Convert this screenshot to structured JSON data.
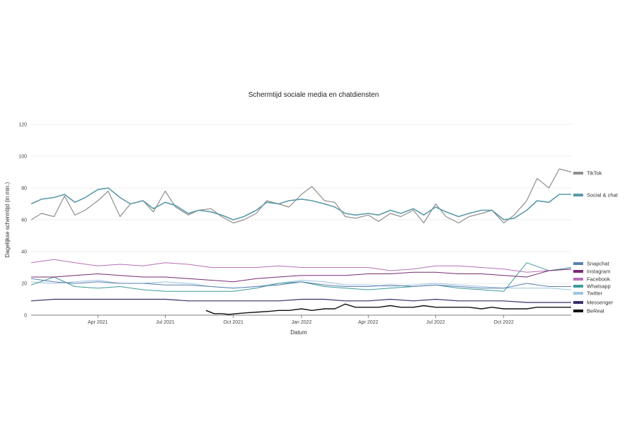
{
  "chart_data": {
    "type": "line",
    "title": "Schermtijd sociale media en chatdiensten",
    "xlabel": "Datum",
    "ylabel": "Dagelijkse schermtijd (in min.)",
    "x_range": [
      "2021-01-01",
      "2022-12-31"
    ],
    "ylim": [
      0,
      120
    ],
    "y_ticks": [
      0,
      20,
      40,
      60,
      80,
      100,
      120
    ],
    "x_ticks": [
      {
        "date": "2021-04-01",
        "label": "Apr 2021"
      },
      {
        "date": "2021-07-01",
        "label": "Jul 2021"
      },
      {
        "date": "2021-10-01",
        "label": "Oct 2021"
      },
      {
        "date": "2022-01-01",
        "label": "Jan 2022"
      },
      {
        "date": "2022-04-01",
        "label": "Apr 2022"
      },
      {
        "date": "2022-07-01",
        "label": "Jul 2022"
      },
      {
        "date": "2022-10-01",
        "label": "Oct 2022"
      }
    ],
    "grid": "horizontal",
    "legend": "right",
    "series": [
      {
        "name": "TikTok",
        "color": "#8e8e8e",
        "stroke": 1.2,
        "x": [
          "2021-01-01",
          "2021-01-15",
          "2021-02-01",
          "2021-02-15",
          "2021-03-01",
          "2021-03-15",
          "2021-04-01",
          "2021-04-15",
          "2021-05-01",
          "2021-05-15",
          "2021-06-01",
          "2021-06-15",
          "2021-07-01",
          "2021-07-15",
          "2021-08-01",
          "2021-08-15",
          "2021-09-01",
          "2021-09-15",
          "2021-10-01",
          "2021-10-15",
          "2021-11-01",
          "2021-11-15",
          "2021-12-01",
          "2021-12-15",
          "2022-01-01",
          "2022-01-15",
          "2022-02-01",
          "2022-02-15",
          "2022-03-01",
          "2022-03-15",
          "2022-04-01",
          "2022-04-15",
          "2022-05-01",
          "2022-05-15",
          "2022-06-01",
          "2022-06-15",
          "2022-07-01",
          "2022-07-15",
          "2022-08-01",
          "2022-08-15",
          "2022-09-01",
          "2022-09-15",
          "2022-10-01",
          "2022-10-15",
          "2022-11-01",
          "2022-11-15",
          "2022-12-01",
          "2022-12-15",
          "2022-12-31"
        ],
        "y": [
          60,
          64,
          62,
          75,
          63,
          66,
          72,
          78,
          62,
          70,
          72,
          65,
          78,
          68,
          63,
          66,
          67,
          62,
          58,
          60,
          64,
          72,
          70,
          68,
          76,
          81,
          72,
          71,
          62,
          61,
          63,
          59,
          64,
          62,
          66,
          58,
          70,
          62,
          58,
          62,
          64,
          66,
          58,
          63,
          72,
          86,
          80,
          92,
          90
        ]
      },
      {
        "name": "Social & chat",
        "color": "#5b9aa8",
        "stroke": 1.6,
        "x": [
          "2021-01-01",
          "2021-01-15",
          "2021-02-01",
          "2021-02-15",
          "2021-03-01",
          "2021-03-15",
          "2021-04-01",
          "2021-04-15",
          "2021-05-01",
          "2021-05-15",
          "2021-06-01",
          "2021-06-15",
          "2021-07-01",
          "2021-07-15",
          "2021-08-01",
          "2021-08-15",
          "2021-09-01",
          "2021-09-15",
          "2021-10-01",
          "2021-10-15",
          "2021-11-01",
          "2021-11-15",
          "2021-12-01",
          "2021-12-15",
          "2022-01-01",
          "2022-01-15",
          "2022-02-01",
          "2022-02-15",
          "2022-03-01",
          "2022-03-15",
          "2022-04-01",
          "2022-04-15",
          "2022-05-01",
          "2022-05-15",
          "2022-06-01",
          "2022-06-15",
          "2022-07-01",
          "2022-07-15",
          "2022-08-01",
          "2022-08-15",
          "2022-09-01",
          "2022-09-15",
          "2022-10-01",
          "2022-10-15",
          "2022-11-01",
          "2022-11-15",
          "2022-12-01",
          "2022-12-15",
          "2022-12-31"
        ],
        "y": [
          70,
          73,
          74,
          76,
          71,
          74,
          79,
          80,
          74,
          70,
          72,
          67,
          71,
          69,
          64,
          66,
          65,
          63,
          60,
          62,
          66,
          71,
          70,
          72,
          73,
          72,
          70,
          68,
          64,
          63,
          64,
          63,
          66,
          64,
          67,
          63,
          68,
          65,
          62,
          64,
          66,
          66,
          60,
          61,
          66,
          72,
          71,
          76,
          76
        ]
      },
      {
        "name": "Snapchat",
        "color": "#5b7fb0",
        "stroke": 1.0,
        "x": [
          "2021-01-01",
          "2021-02-01",
          "2021-03-01",
          "2021-04-01",
          "2021-05-01",
          "2021-06-01",
          "2021-07-01",
          "2021-08-01",
          "2021-09-01",
          "2021-10-01",
          "2021-11-01",
          "2021-12-01",
          "2022-01-01",
          "2022-02-01",
          "2022-03-01",
          "2022-04-01",
          "2022-05-01",
          "2022-06-01",
          "2022-07-01",
          "2022-08-01",
          "2022-09-01",
          "2022-10-01",
          "2022-11-01",
          "2022-12-01",
          "2022-12-31"
        ],
        "y": [
          23,
          21,
          20,
          21,
          20,
          20,
          19,
          19,
          18,
          17,
          18,
          19,
          21,
          19,
          18,
          18,
          19,
          18,
          19,
          18,
          17,
          17,
          20,
          18,
          18
        ]
      },
      {
        "name": "Instagram",
        "color": "#7a2a72",
        "stroke": 1.0,
        "x": [
          "2021-01-01",
          "2021-02-01",
          "2021-03-01",
          "2021-04-01",
          "2021-05-01",
          "2021-06-01",
          "2021-07-01",
          "2021-08-01",
          "2021-09-01",
          "2021-10-01",
          "2021-11-01",
          "2021-12-01",
          "2022-01-01",
          "2022-02-01",
          "2022-03-01",
          "2022-04-01",
          "2022-05-01",
          "2022-06-01",
          "2022-07-01",
          "2022-08-01",
          "2022-09-01",
          "2022-10-01",
          "2022-11-01",
          "2022-12-01",
          "2022-12-31"
        ],
        "y": [
          24,
          24,
          25,
          26,
          25,
          24,
          24,
          23,
          22,
          21,
          23,
          24,
          25,
          25,
          25,
          26,
          26,
          27,
          27,
          26,
          26,
          25,
          24,
          28,
          29
        ]
      },
      {
        "name": "Facebook",
        "color": "#b770b5",
        "stroke": 1.0,
        "x": [
          "2021-01-01",
          "2021-02-01",
          "2021-03-01",
          "2021-04-01",
          "2021-05-01",
          "2021-06-01",
          "2021-07-01",
          "2021-08-01",
          "2021-09-01",
          "2021-10-01",
          "2021-11-01",
          "2021-12-01",
          "2022-01-01",
          "2022-02-01",
          "2022-03-01",
          "2022-04-01",
          "2022-05-01",
          "2022-06-01",
          "2022-07-01",
          "2022-08-01",
          "2022-09-01",
          "2022-10-01",
          "2022-11-01",
          "2022-12-01",
          "2022-12-31"
        ],
        "y": [
          33,
          35,
          33,
          31,
          32,
          31,
          33,
          32,
          30,
          30,
          30,
          31,
          30,
          30,
          30,
          30,
          28,
          29,
          31,
          31,
          30,
          29,
          27,
          28,
          29
        ]
      },
      {
        "name": "Whatsapp",
        "color": "#3e9a9a",
        "stroke": 1.0,
        "x": [
          "2021-01-01",
          "2021-02-01",
          "2021-03-01",
          "2021-04-01",
          "2021-05-01",
          "2021-06-01",
          "2021-07-01",
          "2021-08-01",
          "2021-09-01",
          "2021-10-01",
          "2021-11-01",
          "2021-12-01",
          "2022-01-01",
          "2022-02-01",
          "2022-03-01",
          "2022-04-01",
          "2022-05-01",
          "2022-06-01",
          "2022-07-01",
          "2022-08-01",
          "2022-09-01",
          "2022-10-01",
          "2022-11-01",
          "2022-12-01",
          "2022-12-31"
        ],
        "y": [
          19,
          24,
          18,
          17,
          18,
          16,
          15,
          15,
          15,
          15,
          17,
          20,
          21,
          18,
          17,
          16,
          17,
          18,
          19,
          17,
          16,
          15,
          33,
          28,
          30
        ]
      },
      {
        "name": "Twitter",
        "color": "#9cc4df",
        "stroke": 1.0,
        "x": [
          "2021-01-01",
          "2021-02-01",
          "2021-03-01",
          "2021-04-01",
          "2021-05-01",
          "2021-06-01",
          "2021-07-01",
          "2021-08-01",
          "2021-09-01",
          "2021-10-01",
          "2021-11-01",
          "2021-12-01",
          "2022-01-01",
          "2022-02-01",
          "2022-03-01",
          "2022-04-01",
          "2022-05-01",
          "2022-06-01",
          "2022-07-01",
          "2022-08-01",
          "2022-09-01",
          "2022-10-01",
          "2022-11-01",
          "2022-12-01",
          "2022-12-31"
        ],
        "y": [
          21,
          20,
          21,
          22,
          20,
          20,
          21,
          20,
          18,
          17,
          18,
          20,
          22,
          21,
          19,
          19,
          18,
          19,
          20,
          19,
          18,
          17,
          17,
          17,
          16
        ]
      },
      {
        "name": "Messenger",
        "color": "#3a2f6b",
        "stroke": 1.2,
        "x": [
          "2021-01-01",
          "2021-02-01",
          "2021-03-01",
          "2021-04-01",
          "2021-05-01",
          "2021-06-01",
          "2021-07-01",
          "2021-08-01",
          "2021-09-01",
          "2021-10-01",
          "2021-11-01",
          "2021-12-01",
          "2022-01-01",
          "2022-02-01",
          "2022-03-01",
          "2022-04-01",
          "2022-05-01",
          "2022-06-01",
          "2022-07-01",
          "2022-08-01",
          "2022-09-01",
          "2022-10-01",
          "2022-11-01",
          "2022-12-01",
          "2022-12-31"
        ],
        "y": [
          9,
          10,
          10,
          10,
          10,
          10,
          10,
          9,
          9,
          9,
          9,
          9,
          10,
          10,
          9,
          9,
          10,
          9,
          10,
          9,
          9,
          9,
          8,
          8,
          8
        ]
      },
      {
        "name": "BeReal",
        "color": "#111111",
        "stroke": 1.4,
        "x": [
          "2021-08-25",
          "2021-09-05",
          "2021-09-15",
          "2021-09-25",
          "2021-10-05",
          "2021-10-20",
          "2021-11-05",
          "2021-11-20",
          "2021-12-01",
          "2021-12-15",
          "2022-01-01",
          "2022-01-15",
          "2022-02-01",
          "2022-02-15",
          "2022-03-01",
          "2022-03-15",
          "2022-04-01",
          "2022-04-15",
          "2022-05-01",
          "2022-05-15",
          "2022-06-01",
          "2022-06-15",
          "2022-07-01",
          "2022-07-15",
          "2022-08-01",
          "2022-08-15",
          "2022-09-01",
          "2022-09-15",
          "2022-10-01",
          "2022-10-15",
          "2022-11-01",
          "2022-11-15",
          "2022-12-01",
          "2022-12-15",
          "2022-12-31"
        ],
        "y": [
          3,
          1,
          1,
          0.5,
          1,
          1.5,
          2,
          2.5,
          3,
          3,
          4,
          3,
          4,
          4,
          7,
          5,
          5,
          5,
          6,
          5,
          5,
          6,
          5,
          5,
          5,
          5,
          4,
          5,
          4,
          4,
          4,
          5,
          5,
          5,
          5
        ]
      }
    ]
  }
}
